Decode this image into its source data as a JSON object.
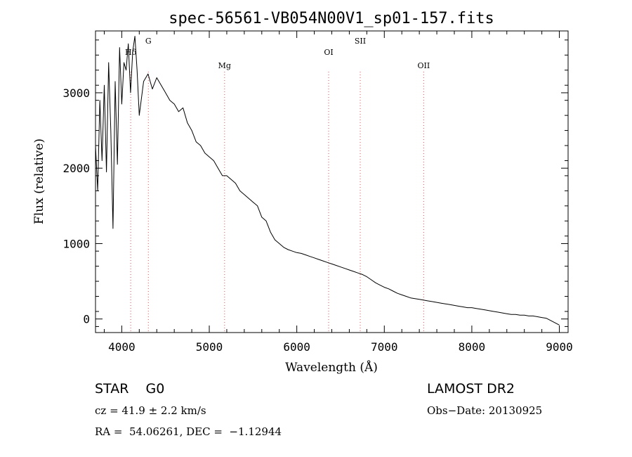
{
  "chart_data": {
    "type": "line",
    "title": "spec-56561-VB054N00V1_sp01-157.fits",
    "xlabel": "Wavelength (Å)",
    "ylabel": "Flux (relative)",
    "xlim": [
      3700,
      9100
    ],
    "ylim": [
      -180,
      3820
    ],
    "xticks": [
      4000,
      5000,
      6000,
      7000,
      8000,
      9000
    ],
    "yticks": [
      0,
      1000,
      2000,
      3000
    ],
    "grid": false,
    "line_color": "#000000",
    "marker_color": "#d9534f",
    "spectral_lines": [
      {
        "label": "Hδ",
        "wavelength": 4102
      },
      {
        "label": "G",
        "wavelength": 4304
      },
      {
        "label": "Mg",
        "wavelength": 5175
      },
      {
        "label": "OI",
        "wavelength": 6364
      },
      {
        "label": "SII",
        "wavelength": 6725
      },
      {
        "label": "OII",
        "wavelength": 7450
      }
    ],
    "series": [
      {
        "x": [
          3700,
          3725,
          3750,
          3775,
          3800,
          3825,
          3850,
          3875,
          3900,
          3925,
          3950,
          3975,
          4000,
          4025,
          4050,
          4075,
          4100,
          4125,
          4150,
          4175,
          4200,
          4250,
          4300,
          4350,
          4400,
          4450,
          4500,
          4550,
          4600,
          4650,
          4700,
          4750,
          4800,
          4850,
          4900,
          4950,
          5000,
          5050,
          5100,
          5150,
          5200,
          5250,
          5300,
          5350,
          5400,
          5450,
          5500,
          5550,
          5600,
          5650,
          5700,
          5750,
          5800,
          5850,
          5900,
          5950,
          6000,
          6050,
          6100,
          6150,
          6200,
          6250,
          6300,
          6350,
          6400,
          6450,
          6500,
          6550,
          6600,
          6650,
          6700,
          6750,
          6800,
          6850,
          6900,
          6950,
          7000,
          7050,
          7100,
          7150,
          7200,
          7250,
          7300,
          7350,
          7400,
          7450,
          7500,
          7550,
          7600,
          7650,
          7700,
          7750,
          7800,
          7850,
          7900,
          7950,
          8000,
          8050,
          8100,
          8150,
          8200,
          8250,
          8300,
          8350,
          8400,
          8450,
          8500,
          8550,
          8600,
          8650,
          8700,
          8750,
          8800,
          8850,
          8900,
          8950,
          9000
        ],
        "y": [
          2300,
          1700,
          2900,
          2100,
          3100,
          1950,
          3400,
          2500,
          1200,
          3150,
          2050,
          3600,
          2850,
          3400,
          3300,
          3650,
          3000,
          3550,
          3750,
          3300,
          2700,
          3150,
          3250,
          3050,
          3200,
          3100,
          3000,
          2900,
          2850,
          2750,
          2800,
          2600,
          2500,
          2350,
          2300,
          2200,
          2150,
          2100,
          2000,
          1900,
          1900,
          1850,
          1800,
          1700,
          1650,
          1600,
          1550,
          1500,
          1350,
          1300,
          1150,
          1050,
          1000,
          950,
          920,
          900,
          880,
          870,
          850,
          830,
          810,
          790,
          770,
          750,
          730,
          710,
          690,
          670,
          650,
          630,
          610,
          590,
          560,
          520,
          480,
          450,
          420,
          400,
          370,
          340,
          320,
          300,
          280,
          270,
          260,
          250,
          240,
          230,
          220,
          210,
          200,
          190,
          180,
          170,
          160,
          150,
          150,
          140,
          130,
          120,
          110,
          100,
          90,
          80,
          70,
          60,
          60,
          50,
          50,
          40,
          40,
          30,
          20,
          10,
          -20,
          -50,
          -80
        ]
      }
    ]
  },
  "info": {
    "object": "STAR    G0",
    "survey": "LAMOST DR2",
    "cz": "cz = 41.9 ± 2.2 km/s",
    "obs_date": "Obs−Date: 20130925",
    "coords": "RA =  54.06261, DEC =  −1.12944"
  }
}
